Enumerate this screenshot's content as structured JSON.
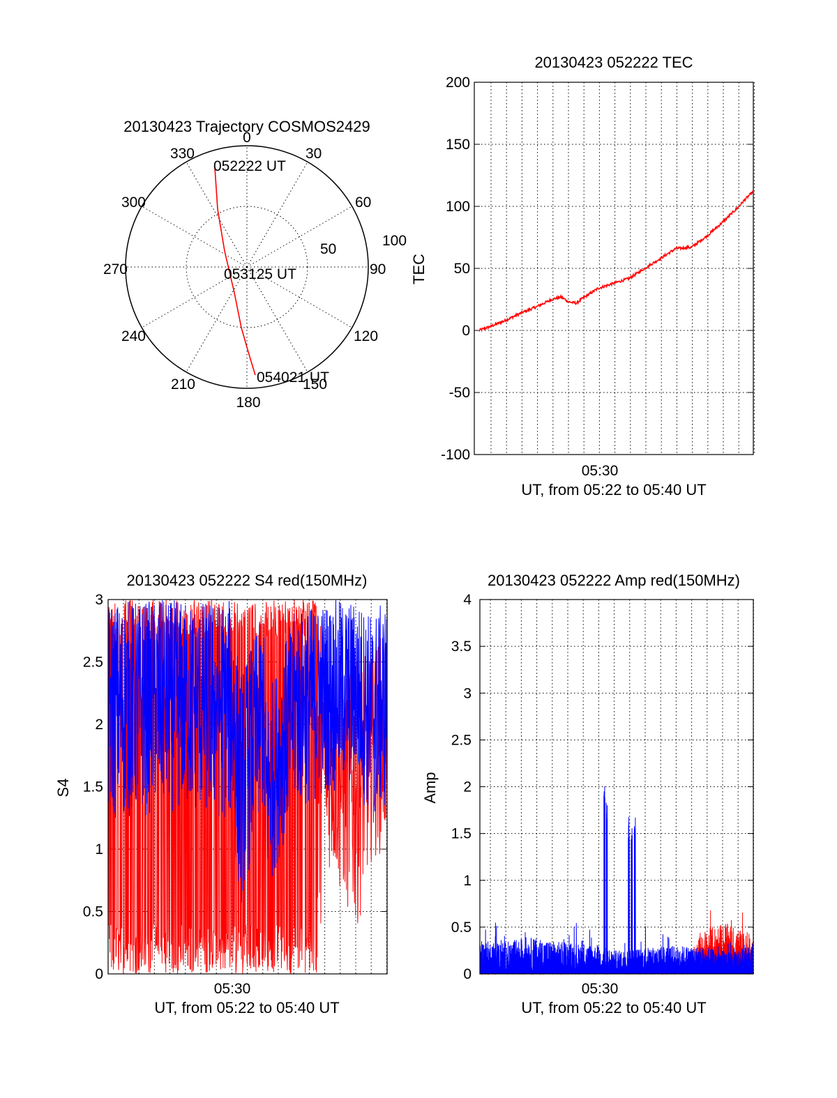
{
  "colors": {
    "red": "#ff0000",
    "blue": "#0000ff",
    "axis": "#000000"
  },
  "chart_data": [
    {
      "type": "polar",
      "title": "20130423 Trajectory COSMOS2429",
      "angle_labels": [
        "0",
        "30",
        "60",
        "90",
        "120",
        "150",
        "180",
        "210",
        "240",
        "270",
        "300",
        "330"
      ],
      "radial_labels": [
        "50",
        "100"
      ],
      "rings": [
        50,
        100
      ],
      "trajectory_color": "#ff0000",
      "trajectory": [
        {
          "azimuth": 343,
          "elevation": 18
        },
        {
          "azimuth": 346,
          "elevation": 40
        },
        {
          "azimuth": 352,
          "elevation": 64
        },
        {
          "azimuth": 60,
          "elevation": 86
        },
        {
          "azimuth": 170,
          "elevation": 64
        },
        {
          "azimuth": 174,
          "elevation": 41
        },
        {
          "azimuth": 175,
          "elevation": 15
        }
      ],
      "annotations": [
        {
          "text": "052222 UT",
          "azimuth": 343,
          "elevation": 18
        },
        {
          "text": "053125 UT",
          "azimuth": 90,
          "elevation": 88
        },
        {
          "text": "054021 UT",
          "azimuth": 175,
          "elevation": 15
        }
      ]
    },
    {
      "type": "line",
      "title": "20130423 052222 TEC",
      "ylabel": "TEC",
      "xlabel": "UT, from 05:22 to 05:40 UT",
      "xtick_labels": [
        "05:30"
      ],
      "ylim": [
        -100,
        200
      ],
      "yticks": [
        "-100",
        "-50",
        "0",
        "50",
        "100",
        "150",
        "200"
      ],
      "grid": true,
      "series": [
        {
          "color": "#ff0000",
          "x_minutes": [
            0.3,
            1,
            2,
            3,
            4,
            5,
            5.6,
            6.1,
            6.6,
            7,
            7.5,
            8,
            9,
            10,
            11,
            12,
            13,
            14,
            15,
            16,
            17,
            17.5,
            18
          ],
          "values": [
            0,
            3,
            8,
            14,
            19,
            25,
            27,
            23,
            22,
            26,
            30,
            34,
            38,
            42,
            50,
            58,
            66,
            67,
            76,
            87,
            99,
            106,
            112
          ]
        }
      ]
    },
    {
      "type": "line",
      "title": "20130423 052222 S4 red(150MHz)",
      "ylabel": "S4",
      "xlabel": "UT, from 05:22 to 05:40 UT",
      "xtick_labels": [
        "05:30"
      ],
      "ylim": [
        0,
        3
      ],
      "yticks": [
        "0",
        "0.5",
        "1",
        "1.5",
        "2",
        "2.5",
        "3"
      ],
      "grid": true,
      "series": [
        {
          "color": "#ff0000",
          "envelope": [
            [
              0,
              0,
              3
            ],
            [
              13.5,
              0,
              3
            ],
            [
              14,
              0.9,
              2.7
            ],
            [
              15,
              0.6,
              2.4
            ],
            [
              16,
              0.3,
              2.5
            ],
            [
              17,
              0.9,
              2.6
            ],
            [
              18,
              1.0,
              2.8
            ]
          ]
        },
        {
          "color": "#0000ff",
          "envelope": [
            [
              0,
              1.2,
              3
            ],
            [
              4,
              1.3,
              3
            ],
            [
              8,
              1.2,
              3
            ],
            [
              8.5,
              0.5,
              2.4
            ],
            [
              10,
              1.3,
              2.9
            ],
            [
              10.2,
              0.6,
              2.2
            ],
            [
              12,
              1.3,
              2.9
            ],
            [
              14,
              1.4,
              3
            ],
            [
              16,
              1.5,
              3
            ],
            [
              17,
              1.2,
              2.9
            ],
            [
              18,
              1.3,
              3
            ]
          ]
        }
      ]
    },
    {
      "type": "line",
      "title": "20130423 052222 Amp red(150MHz)",
      "ylabel": "Amp",
      "xlabel": "UT, from 05:22 to 05:40 UT",
      "xtick_labels": [
        "05:30"
      ],
      "ylim": [
        0,
        4
      ],
      "yticks": [
        "0",
        "0.5",
        "1",
        "1.5",
        "2",
        "2.5",
        "3",
        "3.5",
        "4"
      ],
      "grid": true,
      "series": [
        {
          "color": "#ff0000",
          "noise_level": [
            [
              0,
              0.2
            ],
            [
              14,
              0.25
            ],
            [
              14.5,
              0.45
            ],
            [
              16,
              0.55
            ],
            [
              17,
              0.5
            ],
            [
              18,
              0.35
            ]
          ]
        },
        {
          "color": "#0000ff",
          "noise_level": [
            [
              0,
              0.35
            ],
            [
              2,
              0.35
            ],
            [
              3,
              0.4
            ],
            [
              5,
              0.35
            ],
            [
              8,
              0.3
            ],
            [
              9,
              0.25
            ],
            [
              12,
              0.3
            ],
            [
              14,
              0.3
            ],
            [
              16,
              0.25
            ],
            [
              18,
              0.3
            ]
          ],
          "spikes": [
            {
              "x": 8.2,
              "value": 2.06
            },
            {
              "x": 8.35,
              "value": 1.85
            },
            {
              "x": 9.8,
              "value": 1.68
            },
            {
              "x": 10.0,
              "value": 1.6
            },
            {
              "x": 10.2,
              "value": 1.7
            }
          ]
        }
      ]
    }
  ]
}
